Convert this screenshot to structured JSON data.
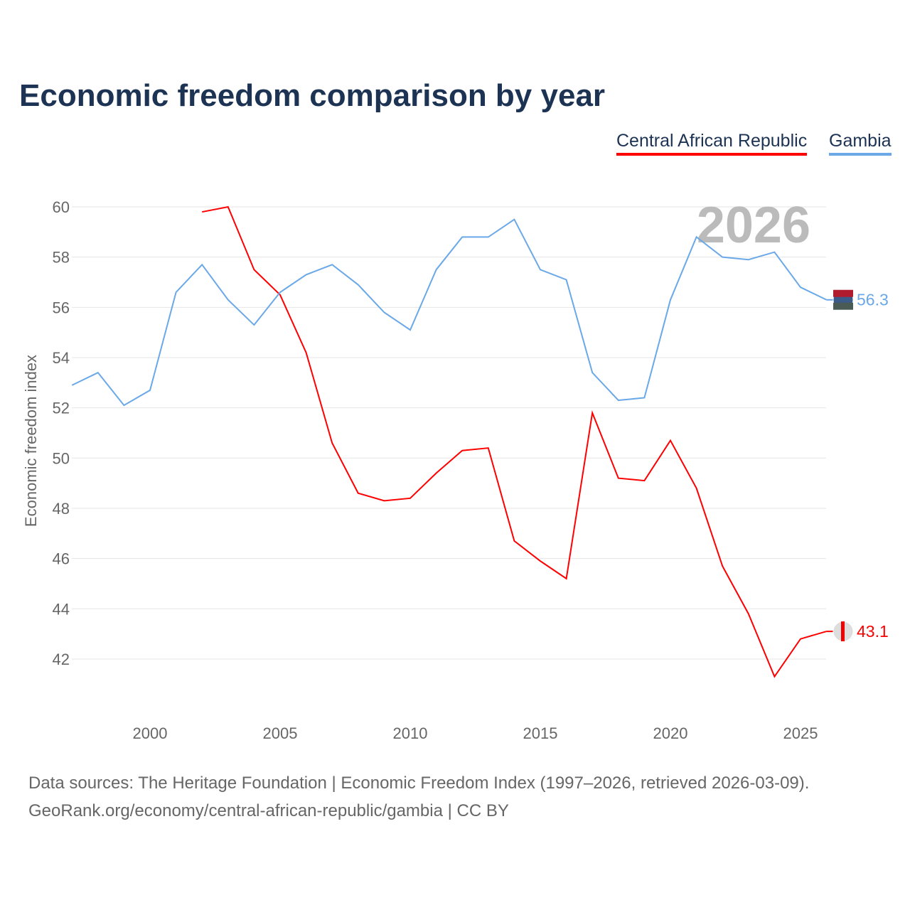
{
  "title": "Economic freedom comparison by year",
  "footer": {
    "line1": "Data sources: The Heritage Foundation | Economic Freedom Index (1997–2026, retrieved 2026-03-09).",
    "line2": "GeoRank.org/economy/central-african-republic/gambia | CC BY"
  },
  "chart_data": {
    "type": "line",
    "title": "Economic freedom comparison by year",
    "ylabel": "Economic freedom index",
    "xlabel": "",
    "ylim": [
      39.5,
      60.5
    ],
    "xlim": [
      1997,
      2026
    ],
    "yticks": [
      42,
      44,
      46,
      48,
      50,
      52,
      54,
      56,
      58,
      60
    ],
    "xticks": [
      2000,
      2005,
      2010,
      2015,
      2020,
      2025
    ],
    "year_label": "2026",
    "legend_position": "top-right",
    "series": [
      {
        "name": "Central African Republic",
        "color": "#ff0000",
        "end_label": "43.1",
        "x": [
          2002,
          2003,
          2004,
          2005,
          2006,
          2007,
          2008,
          2009,
          2010,
          2011,
          2012,
          2013,
          2014,
          2015,
          2016,
          2017,
          2018,
          2019,
          2020,
          2021,
          2022,
          2023,
          2024,
          2025,
          2026
        ],
        "values": [
          59.8,
          60.0,
          57.5,
          56.5,
          54.2,
          50.6,
          48.6,
          48.3,
          48.4,
          49.4,
          50.3,
          50.4,
          46.7,
          45.9,
          45.2,
          51.8,
          49.2,
          49.1,
          50.7,
          48.8,
          45.7,
          43.8,
          41.3,
          42.8,
          43.1
        ]
      },
      {
        "name": "Gambia",
        "color": "#6aa8e8",
        "end_label": "56.3",
        "x": [
          1997,
          1998,
          1999,
          2000,
          2001,
          2002,
          2003,
          2004,
          2005,
          2006,
          2007,
          2008,
          2009,
          2010,
          2011,
          2012,
          2013,
          2014,
          2015,
          2016,
          2017,
          2018,
          2019,
          2020,
          2021,
          2022,
          2023,
          2024,
          2025,
          2026
        ],
        "values": [
          52.9,
          53.4,
          52.1,
          52.7,
          56.6,
          57.7,
          56.3,
          55.3,
          56.6,
          57.3,
          57.7,
          56.9,
          55.8,
          55.1,
          57.5,
          58.8,
          58.8,
          59.5,
          57.5,
          57.1,
          53.4,
          52.3,
          52.4,
          56.3,
          58.8,
          58.0,
          57.9,
          58.2,
          56.8,
          56.3
        ]
      }
    ]
  }
}
